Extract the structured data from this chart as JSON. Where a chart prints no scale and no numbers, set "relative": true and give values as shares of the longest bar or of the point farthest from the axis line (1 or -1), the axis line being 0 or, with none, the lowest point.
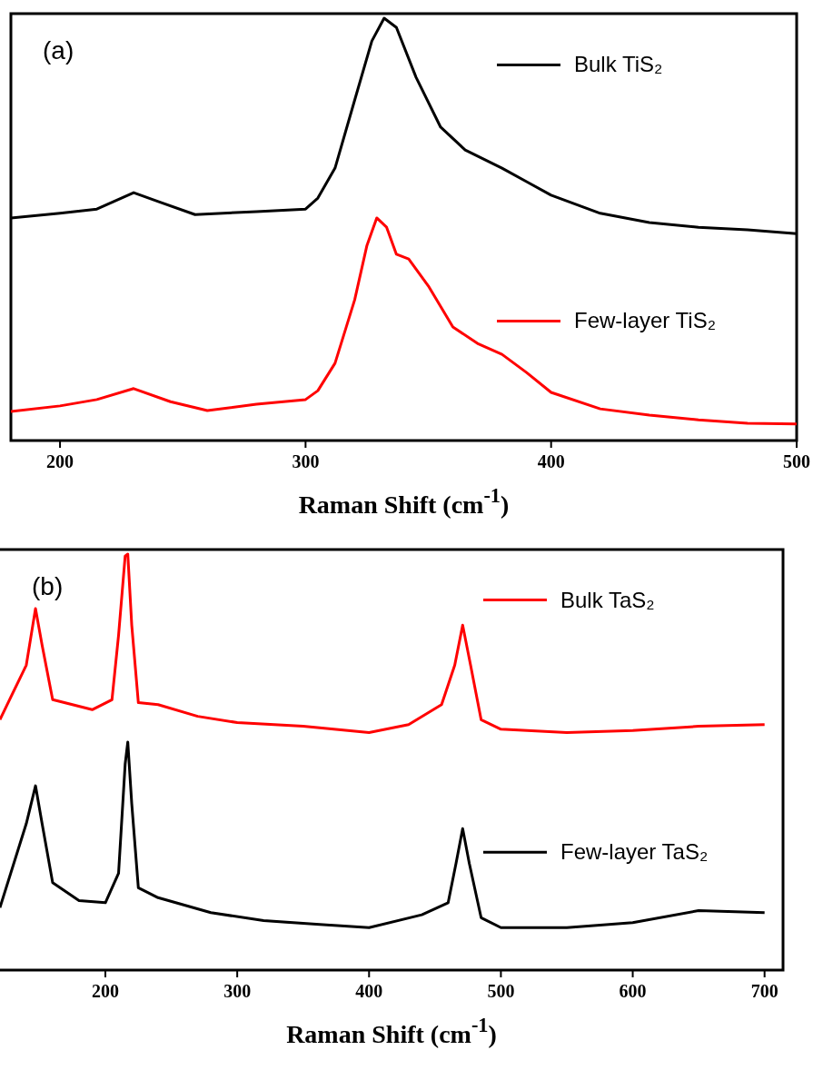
{
  "chart_data": [
    {
      "type": "line",
      "title": "(a)",
      "xlabel": "Raman Shift (cm$^{-1}$)",
      "relative": true,
      "xlim": [
        180,
        500
      ],
      "xticks": [
        200,
        300,
        400,
        500
      ],
      "legend": "right",
      "grid": false,
      "series": [
        {
          "name": "Bulk TiS₂",
          "color": "#000000",
          "x": [
            180,
            200,
            215,
            230,
            240,
            255,
            280,
            300,
            305,
            312,
            320,
            327,
            332,
            337,
            345,
            355,
            365,
            380,
            390,
            400,
            420,
            440,
            460,
            480,
            500
          ],
          "values": [
            0.527,
            0.538,
            0.548,
            0.587,
            0.566,
            0.535,
            0.542,
            0.548,
            0.574,
            0.645,
            0.806,
            0.946,
            1.0,
            0.978,
            0.86,
            0.742,
            0.688,
            0.645,
            0.613,
            0.581,
            0.538,
            0.516,
            0.505,
            0.499,
            0.49
          ]
        },
        {
          "name": "Few-layer TiS₂",
          "color": "#ff0000",
          "x": [
            180,
            200,
            215,
            230,
            245,
            260,
            280,
            300,
            305,
            312,
            320,
            325,
            329,
            333,
            337,
            342,
            350,
            360,
            370,
            380,
            390,
            400,
            420,
            440,
            460,
            480,
            500
          ],
          "values": [
            0.069,
            0.082,
            0.097,
            0.123,
            0.092,
            0.071,
            0.086,
            0.097,
            0.118,
            0.183,
            0.333,
            0.462,
            0.527,
            0.505,
            0.441,
            0.43,
            0.366,
            0.269,
            0.23,
            0.204,
            0.161,
            0.114,
            0.075,
            0.06,
            0.049,
            0.041,
            0.039
          ]
        }
      ]
    },
    {
      "type": "line",
      "title": "(b)",
      "xlabel": "Raman Shift (cm$^{-1}$)",
      "relative": true,
      "xlim": [
        118,
        714
      ],
      "xticks": [
        200,
        300,
        400,
        500,
        600,
        700
      ],
      "legend": "right",
      "grid": false,
      "series": [
        {
          "name": "Bulk TaS₂",
          "color": "#ff0000",
          "x": [
            120,
            140,
            147,
            152,
            160,
            175,
            190,
            205,
            210,
            215,
            217,
            220,
            225,
            240,
            270,
            300,
            350,
            400,
            430,
            455,
            465,
            471,
            477,
            485,
            500,
            550,
            600,
            650,
            700
          ],
          "values": [
            0.602,
            0.733,
            0.869,
            0.781,
            0.65,
            0.638,
            0.626,
            0.65,
            0.805,
            0.995,
            1.0,
            0.829,
            0.643,
            0.638,
            0.61,
            0.595,
            0.586,
            0.571,
            0.59,
            0.638,
            0.733,
            0.829,
            0.733,
            0.602,
            0.579,
            0.571,
            0.576,
            0.586,
            0.59
          ]
        },
        {
          "name": "Few-layer TaS₂",
          "color": "#000000",
          "x": [
            120,
            140,
            147,
            152,
            160,
            180,
            200,
            210,
            215,
            217,
            220,
            225,
            240,
            280,
            320,
            360,
            400,
            440,
            460,
            466,
            471,
            476,
            485,
            500,
            550,
            600,
            650,
            700
          ],
          "values": [
            0.15,
            0.352,
            0.443,
            0.352,
            0.21,
            0.167,
            0.162,
            0.233,
            0.495,
            0.548,
            0.4,
            0.198,
            0.174,
            0.138,
            0.119,
            0.11,
            0.102,
            0.133,
            0.162,
            0.257,
            0.34,
            0.257,
            0.126,
            0.102,
            0.102,
            0.114,
            0.143,
            0.138
          ]
        }
      ]
    }
  ]
}
